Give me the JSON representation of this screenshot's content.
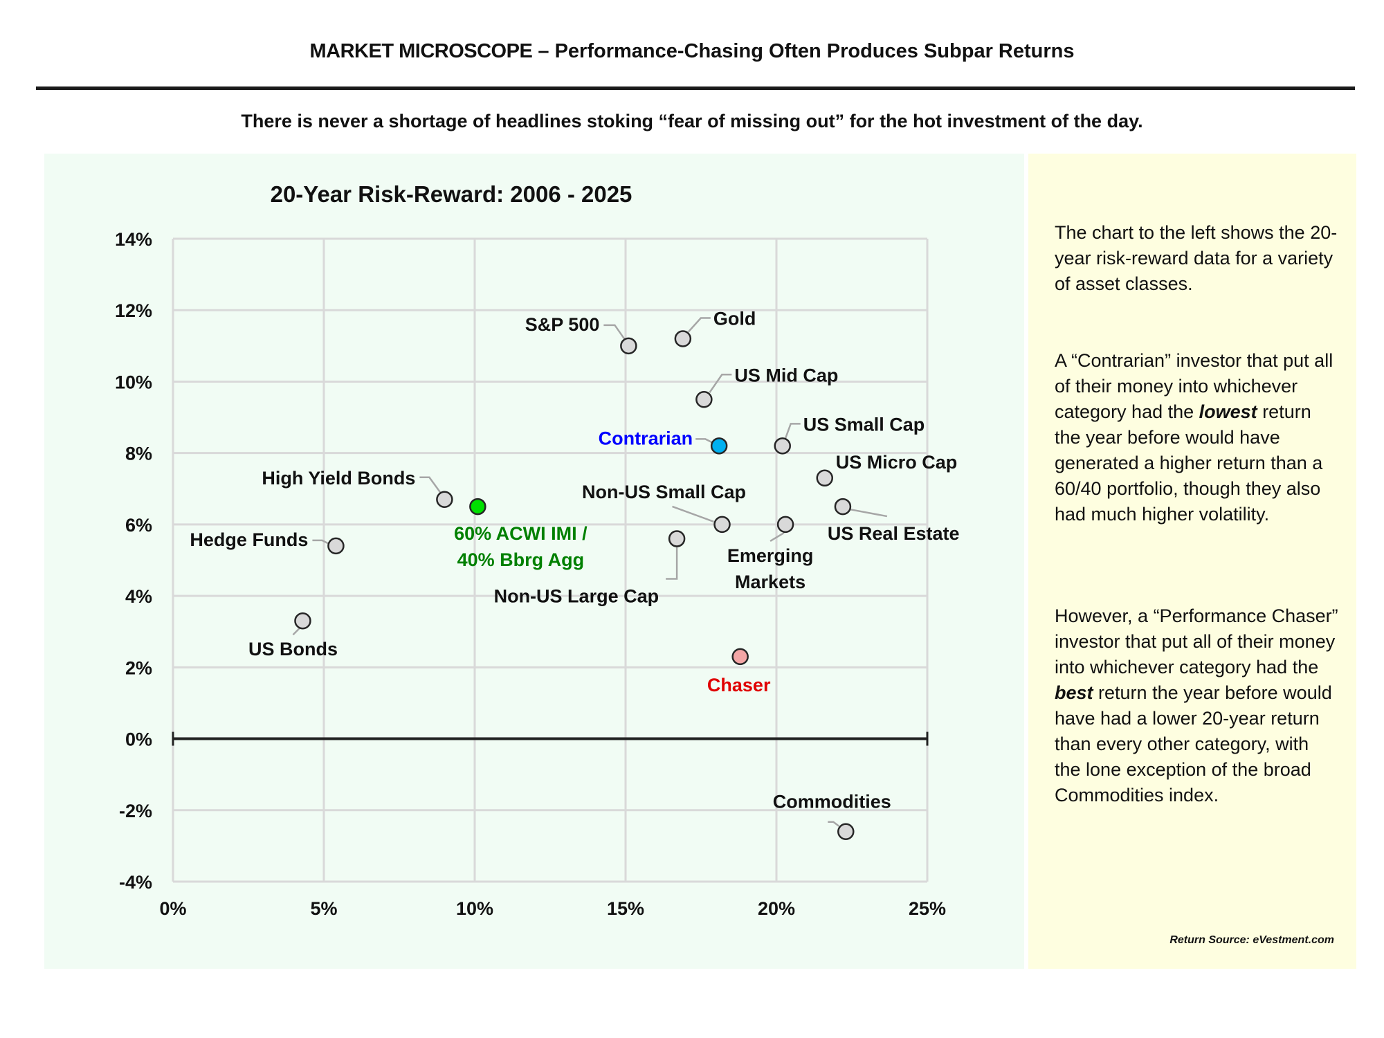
{
  "header": {
    "brand": "MARKET MICROSCOPE",
    "dash": "–",
    "subtitle": "Performance-Chasing Often Produces Subpar Returns"
  },
  "tagline": "There is never a shortage of headlines stoking “fear of missing out” for the hot investment of the day.",
  "sidebar": {
    "p1": "The chart to the left shows the 20-year risk-reward data for a variety of asset classes.",
    "p2_a": "A “Contrarian” investor that put all of their money into whichever category had the ",
    "p2_em": "lowest",
    "p2_b": " return the year before would have generated a higher return than a 60/40 portfolio, though they also had much higher volatility.",
    "p3_a": "However, a “Performance Chaser” investor that put all of their money into whichever category had the ",
    "p3_em": "best",
    "p3_b": " return the year before would have had a lower 20-year return than every other category, with the lone exception of the broad Commodities index.",
    "source": "Return Source: eVestment.com"
  },
  "colors": {
    "chart_bg": "#f1fcf4",
    "side_bg": "#fefee0",
    "point_default": "#d9d9d9",
    "contrarian": "#00b0f0",
    "contrarian_label": "#0000ff",
    "balanced": "#00e000",
    "balanced_label": "#008000",
    "chaser": "#f4a6a6",
    "chaser_label": "#e00000",
    "grid": "#d9d9d9",
    "zero_line": "#222222"
  },
  "chart_data": {
    "type": "scatter",
    "title": "20-Year Risk-Reward: 2006 - 2025",
    "xlabel": "",
    "ylabel": "",
    "xlim": [
      0,
      25
    ],
    "ylim": [
      -4,
      14
    ],
    "x_ticks": [
      "0%",
      "5%",
      "10%",
      "15%",
      "20%",
      "25%"
    ],
    "y_ticks": [
      "14%",
      "12%",
      "10%",
      "8%",
      "6%",
      "4%",
      "2%",
      "0%",
      "-2%",
      "-4%"
    ],
    "grid": true,
    "points": [
      {
        "label": "S&P 500",
        "x": 15.1,
        "y": 11.0,
        "style": "default"
      },
      {
        "label": "Gold",
        "x": 16.9,
        "y": 11.2,
        "style": "default"
      },
      {
        "label": "US Mid Cap",
        "x": 17.6,
        "y": 9.5,
        "style": "default"
      },
      {
        "label": "Contrarian",
        "x": 18.1,
        "y": 8.2,
        "style": "contrarian"
      },
      {
        "label": "US Small Cap",
        "x": 20.2,
        "y": 8.2,
        "style": "default"
      },
      {
        "label": "US Micro Cap",
        "x": 21.6,
        "y": 7.3,
        "style": "default"
      },
      {
        "label": "High Yield Bonds",
        "x": 9.0,
        "y": 6.7,
        "style": "default"
      },
      {
        "label": "60% ACWI IMI /",
        "label2": "40% Bbrg Agg",
        "x": 10.1,
        "y": 6.5,
        "style": "balanced"
      },
      {
        "label": "Non-US Small Cap",
        "x": 18.2,
        "y": 6.0,
        "style": "default"
      },
      {
        "label": "Emerging",
        "label2": "Markets",
        "x": 20.3,
        "y": 6.0,
        "style": "default"
      },
      {
        "label": "US Real Estate",
        "x": 22.2,
        "y": 6.5,
        "style": "default"
      },
      {
        "label": "Hedge Funds",
        "x": 5.4,
        "y": 5.4,
        "style": "default"
      },
      {
        "label": "Non-US Large Cap",
        "x": 16.7,
        "y": 5.6,
        "style": "default"
      },
      {
        "label": "US Bonds",
        "x": 4.3,
        "y": 3.3,
        "style": "default"
      },
      {
        "label": "Chaser",
        "x": 18.8,
        "y": 2.3,
        "style": "chaser"
      },
      {
        "label": "Commodities",
        "x": 22.3,
        "y": -2.6,
        "style": "default"
      }
    ]
  }
}
